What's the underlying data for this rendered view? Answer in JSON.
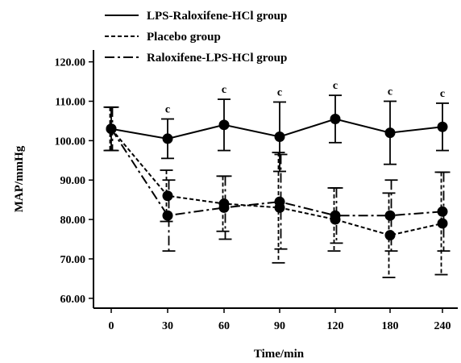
{
  "chart_data": {
    "type": "line",
    "xlabel": "Time/min",
    "ylabel": "MAP/mmHg",
    "categories": [
      "0",
      "30",
      "60",
      "90",
      "120",
      "180",
      "240"
    ],
    "y_ticks": [
      "60.00",
      "70.00",
      "80.00",
      "90.00",
      "100.00",
      "110.00",
      "120.00"
    ],
    "ylim": [
      57.5,
      123
    ],
    "legend_position": "top-left",
    "significance_label": "c",
    "significance_marks": [
      false,
      true,
      true,
      true,
      true,
      true,
      true
    ],
    "series": [
      {
        "name": "LPS-Raloxifene-HCl group",
        "style": "solid",
        "values": [
          103.0,
          100.5,
          104.0,
          101.0,
          105.5,
          102.0,
          103.5
        ],
        "error": [
          5.5,
          5.0,
          6.5,
          8.8,
          6.0,
          8.0,
          6.0
        ]
      },
      {
        "name": "Placebo group",
        "style": "dashed",
        "values": [
          103.0,
          86.0,
          84.0,
          83.0,
          80.0,
          76.0,
          79.0
        ],
        "error": [
          5.5,
          6.5,
          7.0,
          14.0,
          8.0,
          10.7,
          13.0
        ]
      },
      {
        "name": "Raloxifene-LPS-HCl group",
        "style": "dashdot",
        "values": [
          103.0,
          81.0,
          83.0,
          84.5,
          81.0,
          81.0,
          82.0
        ],
        "error": [
          5.5,
          9.0,
          8.0,
          12.0,
          7.0,
          9.0,
          10.0
        ]
      }
    ]
  }
}
